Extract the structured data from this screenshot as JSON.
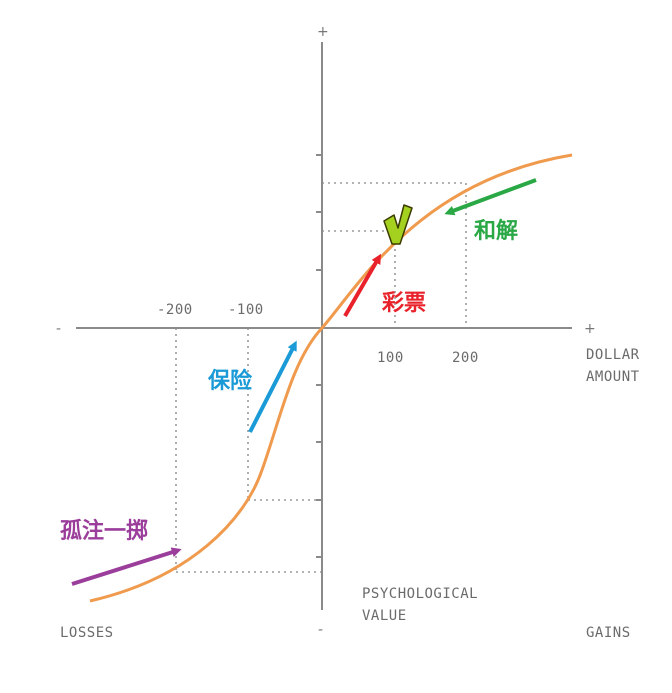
{
  "signs": {
    "plus_y": "+",
    "minus_y": "-",
    "plus_x": "+",
    "minus_x": "-"
  },
  "ticks_x": {
    "neg200": "-200",
    "neg100": "-100",
    "pos100": "100",
    "pos200": "200"
  },
  "axis_labels": {
    "dollar": "DOLLAR",
    "amount": "AMOUNT",
    "psych1": "PSYCHOLOGICAL",
    "psych2": "VALUE",
    "losses": "LOSSES",
    "gains": "GAINS"
  },
  "annotations": {
    "reconcile": "和解",
    "lottery": "彩票",
    "insurance": "保险",
    "all_in": "孤注一掷"
  },
  "colors": {
    "curve": "#ef9a4d",
    "reconcile": "#2aa845",
    "lottery": "#e8212a",
    "insurance": "#1a9ad6",
    "all_in": "#9b3e9b",
    "check": "#a4d11f"
  }
}
